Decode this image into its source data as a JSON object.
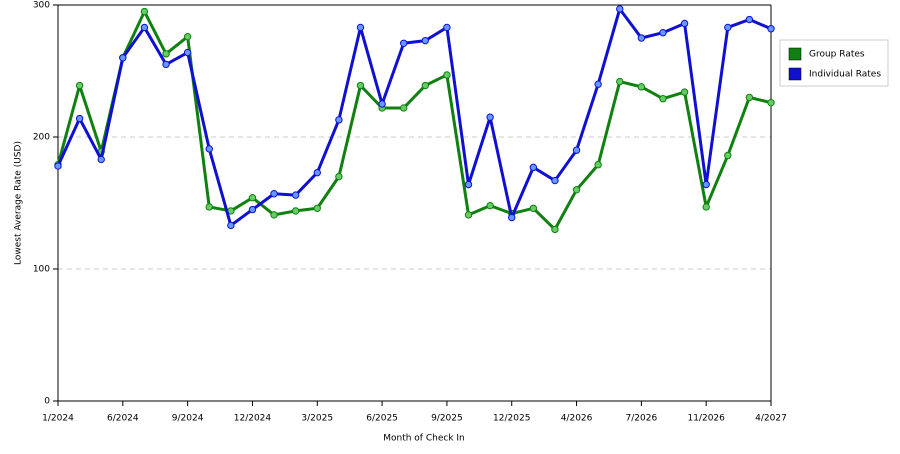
{
  "chart_data": {
    "type": "line",
    "x_label": "Month of Check In",
    "y_label": "Lowest Average Rate (USD)",
    "categories": [
      "1/2024",
      null,
      null,
      "6/2024",
      null,
      null,
      "9/2024",
      null,
      null,
      "12/2024",
      null,
      null,
      "3/2025",
      null,
      null,
      "6/2025",
      null,
      null,
      "9/2025",
      null,
      null,
      "12/2025",
      null,
      null,
      "4/2026",
      null,
      null,
      "7/2026",
      null,
      null,
      "11/2026",
      null,
      null,
      "4/2027"
    ],
    "series": [
      {
        "name": "Group Rates",
        "color": "#108010",
        "values": [
          179,
          239,
          189,
          260,
          295,
          263,
          276,
          147,
          144,
          154,
          141,
          144,
          146,
          170,
          239,
          222,
          222,
          239,
          247,
          141,
          148,
          142,
          146,
          130,
          160,
          179,
          242,
          238,
          229,
          234,
          147,
          186,
          230,
          226
        ]
      },
      {
        "name": "Individual Rates",
        "color": "#1010d0",
        "values": [
          178,
          214,
          183,
          260,
          283,
          255,
          264,
          191,
          133,
          145,
          157,
          156,
          173,
          213,
          283,
          225,
          271,
          273,
          283,
          164,
          215,
          139,
          177,
          167,
          190,
          240,
          297,
          275,
          279,
          286,
          164,
          283,
          289,
          282
        ]
      }
    ],
    "ylim": [
      0,
      300
    ],
    "yticks": [
      0,
      100,
      200,
      300
    ],
    "grid": true,
    "legend": "top-right"
  }
}
